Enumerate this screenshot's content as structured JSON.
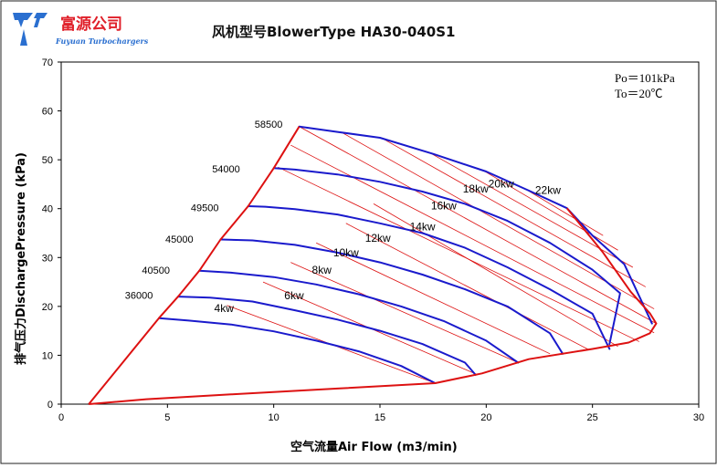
{
  "logo": {
    "company_cn": "富源公司",
    "company_en": "Fuyuan Turbochargers",
    "mark_icon": "fuyuan-logo-icon"
  },
  "chart_data": {
    "type": "line",
    "title": "风机型号BlowerType HA30-040S1",
    "xlabel": "空气流量Air Flow (m3/min)",
    "ylabel": "排气压力DischargePressure (kPa)",
    "xlim": [
      0,
      30
    ],
    "ylim": [
      0,
      70
    ],
    "xticks": [
      0,
      5,
      10,
      15,
      20,
      25,
      30
    ],
    "yticks": [
      0,
      10,
      20,
      30,
      40,
      50,
      60,
      70
    ],
    "grid": false,
    "conditions": [
      "Po＝101kPa",
      "To＝20℃"
    ],
    "colors": {
      "speed": "#1a1acc",
      "envelope": "#dd1111",
      "power": "#dd1111"
    },
    "speed_lines": [
      {
        "rpm": "36000",
        "points": [
          [
            4.6,
            17.6
          ],
          [
            6.0,
            17.1
          ],
          [
            8.0,
            16.3
          ],
          [
            10.0,
            14.9
          ],
          [
            12.0,
            13.0
          ],
          [
            14.0,
            10.8
          ],
          [
            16.0,
            7.8
          ],
          [
            17.6,
            4.3
          ]
        ]
      },
      {
        "rpm": "40500",
        "points": [
          [
            5.5,
            22.0
          ],
          [
            7.0,
            21.8
          ],
          [
            9.0,
            21.0
          ],
          [
            11.0,
            19.2
          ],
          [
            13.0,
            17.3
          ],
          [
            15.0,
            15.0
          ],
          [
            17.0,
            12.3
          ],
          [
            19.0,
            8.5
          ],
          [
            19.5,
            6.0
          ]
        ]
      },
      {
        "rpm": "45000",
        "points": [
          [
            6.5,
            27.3
          ],
          [
            8.0,
            26.9
          ],
          [
            10.0,
            26.0
          ],
          [
            12.0,
            24.5
          ],
          [
            14.0,
            22.5
          ],
          [
            16.0,
            20.0
          ],
          [
            18.0,
            17.0
          ],
          [
            20.0,
            13.0
          ],
          [
            21.5,
            8.5
          ]
        ]
      },
      {
        "rpm": "49500",
        "points": [
          [
            7.5,
            33.7
          ],
          [
            9.0,
            33.5
          ],
          [
            11.0,
            32.6
          ],
          [
            13.0,
            31.0
          ],
          [
            15.0,
            29.0
          ],
          [
            17.0,
            26.5
          ],
          [
            19.0,
            23.5
          ],
          [
            21.0,
            20.0
          ],
          [
            23.0,
            14.5
          ],
          [
            23.6,
            10.3
          ]
        ]
      },
      {
        "rpm": "54000",
        "points": [
          [
            8.8,
            40.5
          ],
          [
            9.6,
            40.4
          ],
          [
            11.0,
            39.9
          ],
          [
            13.0,
            38.8
          ],
          [
            15.0,
            37.0
          ],
          [
            17.0,
            35.0
          ],
          [
            19.0,
            32.0
          ],
          [
            21.0,
            28.0
          ],
          [
            23.0,
            23.5
          ],
          [
            25.0,
            18.5
          ],
          [
            25.8,
            11.3
          ]
        ]
      },
      {
        "rpm": "58500",
        "points": [
          [
            10.0,
            48.3
          ],
          [
            11.0,
            48.0
          ],
          [
            13.0,
            47.0
          ],
          [
            15.0,
            45.5
          ],
          [
            17.0,
            43.5
          ],
          [
            19.0,
            41.0
          ],
          [
            21.0,
            37.5
          ],
          [
            23.0,
            33.0
          ],
          [
            25.0,
            27.5
          ],
          [
            26.3,
            22.7
          ],
          [
            25.8,
            12.3
          ]
        ]
      },
      {
        "rpm": "",
        "points": [
          [
            11.2,
            56.8
          ],
          [
            13.0,
            55.7
          ],
          [
            15.0,
            54.5
          ],
          [
            17.5,
            51.2
          ],
          [
            20.0,
            47.6
          ],
          [
            22.0,
            43.7
          ],
          [
            23.8,
            40.1
          ],
          [
            25.0,
            34.5
          ],
          [
            26.5,
            28.6
          ],
          [
            27.8,
            16.5
          ]
        ]
      }
    ],
    "rpm_labels": [
      {
        "text": "36000",
        "x": 3.0,
        "y": 21.6
      },
      {
        "text": "40500",
        "x": 3.8,
        "y": 26.7
      },
      {
        "text": "45000",
        "x": 4.9,
        "y": 33.0
      },
      {
        "text": "49500",
        "x": 6.1,
        "y": 39.5
      },
      {
        "text": "54000",
        "x": 7.1,
        "y": 47.4
      },
      {
        "text": "58500",
        "x": 9.1,
        "y": 56.6
      }
    ],
    "surge_line": [
      [
        1.3,
        0.0
      ],
      [
        4.6,
        17.6
      ],
      [
        5.5,
        22.0
      ],
      [
        6.5,
        27.3
      ],
      [
        7.5,
        33.7
      ],
      [
        8.8,
        40.5
      ],
      [
        10.0,
        48.3
      ],
      [
        11.2,
        56.8
      ]
    ],
    "max_flow_line": [
      [
        23.8,
        40.1
      ],
      [
        25.5,
        31.0
      ],
      [
        26.8,
        23.0
      ],
      [
        27.7,
        18.6
      ],
      [
        28.0,
        16.5
      ],
      [
        27.7,
        14.5
      ],
      [
        26.7,
        12.6
      ],
      [
        25.0,
        11.3
      ],
      [
        22.0,
        9.2
      ],
      [
        19.8,
        6.3
      ],
      [
        17.6,
        4.3
      ],
      [
        13.0,
        3.2
      ],
      [
        8.0,
        2.0
      ],
      [
        4.0,
        1.0
      ],
      [
        1.3,
        0.0
      ]
    ],
    "power_lines": [
      {
        "start": [
          7.8,
          20.2
        ],
        "end": [
          17.6,
          4.3
        ]
      },
      {
        "start": [
          9.5,
          25.0
        ],
        "end": [
          19.6,
          6.0
        ]
      },
      {
        "start": [
          10.8,
          29.0
        ],
        "end": [
          21.5,
          8.5
        ]
      },
      {
        "start": [
          12.0,
          33.0
        ],
        "end": [
          23.0,
          10.3
        ]
      },
      {
        "start": [
          13.4,
          37.0
        ],
        "end": [
          24.8,
          11.2
        ]
      },
      {
        "start": [
          14.7,
          41.0
        ],
        "end": [
          26.2,
          11.8
        ]
      },
      {
        "start": [
          10.2,
          48.5
        ],
        "end": [
          27.2,
          12.8
        ]
      },
      {
        "start": [
          10.8,
          53.0
        ],
        "end": [
          27.9,
          14.6
        ]
      },
      {
        "start": [
          11.2,
          56.8
        ],
        "end": [
          28.0,
          16.5
        ]
      },
      {
        "start": [
          13.2,
          55.6
        ],
        "end": [
          27.9,
          19.5
        ]
      },
      {
        "start": [
          15.1,
          54.4
        ],
        "end": [
          27.5,
          24.0
        ]
      },
      {
        "start": [
          17.4,
          51.3
        ],
        "end": [
          26.9,
          28.0
        ]
      },
      {
        "start": [
          19.9,
          47.7
        ],
        "end": [
          26.2,
          31.5
        ]
      },
      {
        "start": [
          22.0,
          43.6
        ],
        "end": [
          25.5,
          34.5
        ]
      }
    ],
    "power_labels": [
      {
        "text": "4kw",
        "x": 7.2,
        "y": 18.9
      },
      {
        "text": "6kw",
        "x": 10.5,
        "y": 21.5
      },
      {
        "text": "8kw",
        "x": 11.8,
        "y": 26.7
      },
      {
        "text": "10kw",
        "x": 12.8,
        "y": 30.2
      },
      {
        "text": "12kw",
        "x": 14.3,
        "y": 33.2
      },
      {
        "text": "14kw",
        "x": 16.4,
        "y": 35.6
      },
      {
        "text": "16kw",
        "x": 17.4,
        "y": 39.9
      },
      {
        "text": "18kw",
        "x": 18.9,
        "y": 43.3
      },
      {
        "text": "20kw",
        "x": 20.1,
        "y": 44.3
      },
      {
        "text": "22kw",
        "x": 22.3,
        "y": 43.0
      }
    ]
  }
}
